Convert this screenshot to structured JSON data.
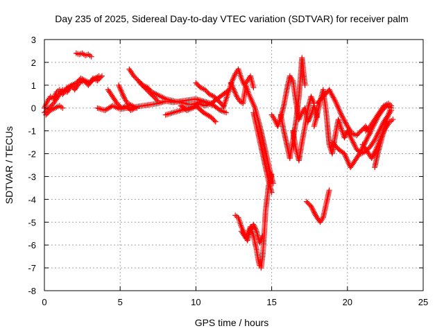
{
  "chart_data": {
    "type": "scatter",
    "title": "Day 235 of 2025, Sidereal Day-to-day VTEC variation (SDTVAR) for receiver palm",
    "xlabel": "GPS time / hours",
    "ylabel": "SDTVAR / TECUs",
    "xlim": [
      0,
      25
    ],
    "ylim": [
      -8,
      3
    ],
    "xticks": [
      0,
      5,
      10,
      15,
      20,
      25
    ],
    "yticks": [
      3,
      2,
      1,
      0,
      -1,
      -2,
      -3,
      -4,
      -5,
      -6,
      -7,
      -8
    ],
    "grid": true,
    "marker": "plus",
    "color": "#ff0000",
    "series": [
      {
        "x": [
          0.0,
          0.2,
          0.4,
          0.6,
          0.8,
          1.0,
          1.2,
          1.5,
          1.8,
          2.0,
          2.3,
          2.6,
          2.9,
          3.2,
          3.5,
          3.8
        ],
        "y": [
          0.0,
          0.3,
          0.5,
          0.4,
          0.7,
          0.8,
          0.6,
          0.9,
          1.0,
          0.8,
          1.1,
          1.2,
          1.0,
          1.3,
          1.2,
          1.4
        ]
      },
      {
        "x": [
          0.0,
          0.3,
          0.6,
          0.9,
          1.2,
          1.5,
          1.8,
          2.1,
          2.4,
          2.7,
          3.0,
          3.3,
          3.6
        ],
        "y": [
          -0.2,
          0.0,
          0.2,
          0.5,
          0.8,
          0.7,
          1.0,
          1.1,
          1.3,
          1.2,
          1.1,
          1.3,
          1.4
        ]
      },
      {
        "x": [
          0.1,
          0.4,
          0.7,
          1.0,
          1.2
        ],
        "y": [
          -0.3,
          -0.1,
          0.0,
          0.1,
          0.0
        ]
      },
      {
        "x": [
          2.1,
          2.3,
          2.5,
          2.7,
          2.9,
          3.1
        ],
        "y": [
          2.4,
          2.35,
          2.4,
          2.3,
          2.35,
          2.25
        ]
      },
      {
        "x": [
          3.5,
          4.0,
          4.5,
          5.0,
          5.5,
          6.0,
          6.5,
          7.0,
          7.5,
          8.0,
          8.5,
          9.0,
          9.5,
          10.0,
          10.5,
          11.0
        ],
        "y": [
          0.0,
          -0.1,
          0.1,
          -0.05,
          0.0,
          0.05,
          0.1,
          0.15,
          0.2,
          0.3,
          0.25,
          0.3,
          0.35,
          0.4,
          0.3,
          0.2
        ]
      },
      {
        "x": [
          4.2,
          4.5,
          4.8,
          5.1,
          5.4,
          5.7,
          6.0
        ],
        "y": [
          0.8,
          0.5,
          0.2,
          0.0,
          0.1,
          -0.1,
          0.0
        ]
      },
      {
        "x": [
          4.9,
          5.1,
          5.3,
          5.5,
          5.8,
          6.1
        ],
        "y": [
          1.0,
          0.7,
          0.4,
          0.2,
          0.1,
          0.0
        ]
      },
      {
        "x": [
          5.6,
          5.9,
          6.2,
          6.5,
          6.8,
          7.1,
          7.4,
          7.7,
          8.0,
          8.3,
          8.6,
          9.0,
          9.3,
          9.6,
          10.0,
          10.4,
          10.8,
          11.2,
          11.6,
          12.0
        ],
        "y": [
          1.7,
          1.4,
          1.2,
          1.0,
          0.9,
          0.7,
          0.6,
          0.5,
          0.4,
          0.35,
          0.3,
          0.25,
          0.2,
          0.15,
          0.2,
          0.3,
          0.2,
          0.1,
          -0.1,
          -0.2
        ]
      },
      {
        "x": [
          6.3,
          6.6,
          6.9,
          7.2,
          7.5
        ],
        "y": [
          1.1,
          0.9,
          0.7,
          0.5,
          0.3
        ]
      },
      {
        "x": [
          8.0,
          8.5,
          9.0,
          9.5,
          10.0,
          10.5,
          11.0,
          11.3
        ],
        "y": [
          -0.3,
          -0.2,
          -0.1,
          0.0,
          0.1,
          -0.2,
          -0.4,
          -0.6
        ]
      },
      {
        "x": [
          9.0,
          9.4,
          9.8,
          10.2,
          10.6,
          11.0,
          11.4,
          11.8,
          12.2
        ],
        "y": [
          0.1,
          -0.1,
          0.0,
          0.2,
          0.1,
          0.2,
          0.4,
          0.6,
          0.8
        ]
      },
      {
        "x": [
          10.0,
          10.3,
          10.6,
          10.9,
          11.2,
          11.5,
          11.8
        ],
        "y": [
          1.1,
          0.9,
          0.8,
          0.6,
          0.5,
          0.3,
          0.1
        ]
      },
      {
        "x": [
          11.8,
          12.0,
          12.2,
          12.4,
          12.6,
          12.8,
          13.0,
          13.2,
          13.4,
          13.6,
          13.8
        ],
        "y": [
          0.0,
          0.4,
          0.8,
          1.2,
          1.5,
          1.7,
          1.3,
          1.0,
          1.2,
          1.4,
          0.9
        ]
      },
      {
        "x": [
          12.3,
          12.5,
          12.7,
          12.9,
          13.1,
          13.3,
          13.5,
          13.7,
          13.9,
          14.1,
          14.3,
          14.5,
          14.7,
          14.9,
          15.1
        ],
        "y": [
          1.1,
          0.8,
          0.5,
          0.3,
          0.2,
          1.0,
          0.6,
          0.3,
          0.0,
          -0.5,
          -1.0,
          -1.6,
          -2.2,
          -2.8,
          -3.3
        ]
      },
      {
        "x": [
          13.8,
          14.0,
          14.2,
          14.4,
          14.6,
          14.8,
          15.0
        ],
        "y": [
          -0.2,
          -0.8,
          -1.4,
          -2.0,
          -2.6,
          -3.2,
          -3.7
        ]
      },
      {
        "x": [
          12.6,
          12.8,
          13.0,
          13.2,
          13.4,
          13.6,
          13.8,
          14.0,
          14.2,
          14.4
        ],
        "y": [
          -4.7,
          -4.8,
          -5.2,
          -5.5,
          -5.8,
          -5.3,
          -5.1,
          -5.4,
          -5.9,
          -5.6
        ]
      },
      {
        "x": [
          13.0,
          13.3,
          13.6,
          13.8,
          14.0,
          14.1,
          14.2,
          14.3,
          14.4,
          14.5,
          14.6,
          14.8,
          15.0
        ],
        "y": [
          -5.4,
          -5.7,
          -5.2,
          -5.6,
          -6.2,
          -6.6,
          -6.9,
          -7.0,
          -6.5,
          -5.6,
          -4.5,
          -3.4,
          -2.9
        ]
      },
      {
        "x": [
          15.0,
          15.2,
          15.4,
          15.6,
          15.8,
          16.0,
          16.2,
          16.4,
          16.6,
          16.8,
          17.0,
          17.2,
          17.4,
          17.6,
          17.8,
          18.0
        ],
        "y": [
          -0.3,
          -0.5,
          -0.8,
          -0.4,
          0.1,
          0.8,
          1.4,
          1.2,
          0.3,
          -0.5,
          -0.2,
          0.0,
          -0.6,
          -0.3,
          0.1,
          -0.4
        ]
      },
      {
        "x": [
          15.6,
          15.8,
          16.0,
          16.2,
          16.4,
          16.6,
          16.8,
          17.0,
          17.2
        ],
        "y": [
          -0.3,
          -1.0,
          -1.6,
          -2.2,
          -1.4,
          -0.6,
          0.5,
          2.2,
          1.0
        ]
      },
      {
        "x": [
          16.4,
          16.6,
          16.8,
          17.0,
          17.2,
          17.4,
          17.6,
          17.8
        ],
        "y": [
          -1.0,
          -1.8,
          -2.3,
          -1.5,
          -0.8,
          0.0,
          0.5,
          0.2
        ]
      },
      {
        "x": [
          17.3,
          17.6,
          17.9,
          18.2,
          18.4,
          18.6,
          18.8
        ],
        "y": [
          -4.1,
          -4.3,
          -4.7,
          -5.0,
          -4.8,
          -4.2,
          -3.6
        ]
      },
      {
        "x": [
          17.8,
          18.0,
          18.2,
          18.4,
          18.6,
          18.8,
          19.0,
          19.2,
          19.4,
          19.6,
          19.8,
          20.0
        ],
        "y": [
          -0.8,
          -0.3,
          0.3,
          0.8,
          -0.2,
          -1.6,
          -2.0,
          -1.2,
          -0.5,
          -0.9,
          -1.3,
          -1.0
        ]
      },
      {
        "x": [
          18.0,
          18.4,
          18.8,
          19.2,
          19.6,
          20.0,
          20.3,
          20.6,
          20.9,
          21.2,
          21.5
        ],
        "y": [
          0.2,
          0.5,
          0.8,
          0.3,
          -0.3,
          -0.8,
          -1.1,
          -1.2,
          -1.0,
          -0.8,
          -1.1
        ]
      },
      {
        "x": [
          19.0,
          19.4,
          19.8,
          20.2,
          20.5,
          20.8,
          21.1,
          21.4,
          21.7,
          22.0,
          22.3,
          22.6,
          22.9
        ],
        "y": [
          -1.5,
          -1.8,
          -2.0,
          -2.6,
          -2.3,
          -2.0,
          -1.6,
          -1.2,
          -0.8,
          -0.4,
          -0.1,
          0.1,
          0.0
        ]
      },
      {
        "x": [
          20.0,
          20.3,
          20.6,
          20.9,
          21.2,
          21.5,
          21.8,
          22.1,
          22.4,
          22.7,
          22.9
        ],
        "y": [
          -1.0,
          -1.4,
          -1.8,
          -2.0,
          -1.9,
          -1.7,
          -1.4,
          -1.0,
          -0.6,
          -0.3,
          -0.1
        ]
      },
      {
        "x": [
          21.0,
          21.3,
          21.6,
          21.9,
          22.2,
          22.5,
          22.8,
          23.0
        ],
        "y": [
          -1.6,
          -1.9,
          -2.2,
          -1.8,
          -1.3,
          -0.9,
          -0.6,
          -0.5
        ]
      },
      {
        "x": [
          21.8,
          22.0,
          22.2,
          22.4,
          22.6,
          22.8
        ],
        "y": [
          -2.6,
          -2.0,
          -1.5,
          -1.0,
          -0.5,
          -0.1
        ]
      },
      {
        "x": [
          21.2,
          21.5,
          21.8,
          22.1,
          22.4,
          22.7,
          22.9
        ],
        "y": [
          -1.0,
          -0.8,
          -0.5,
          -0.2,
          0.1,
          0.2,
          0.1
        ]
      }
    ]
  }
}
